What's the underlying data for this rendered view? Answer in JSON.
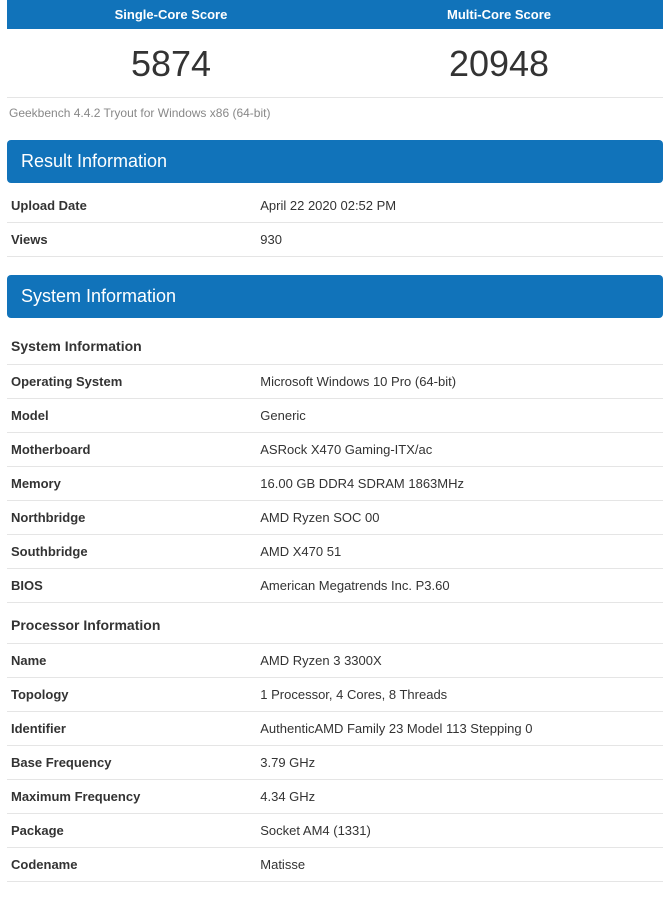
{
  "scores": {
    "single_label": "Single-Core Score",
    "single_value": "5874",
    "multi_label": "Multi-Core Score",
    "multi_value": "20948"
  },
  "footnote": "Geekbench 4.4.2 Tryout for Windows x86 (64-bit)",
  "result_info": {
    "title": "Result Information",
    "rows": [
      {
        "label": "Upload Date",
        "value": "April 22 2020 02:52 PM"
      },
      {
        "label": "Views",
        "value": "930"
      }
    ]
  },
  "system_info": {
    "title": "System Information",
    "subhead": "System Information",
    "rows": [
      {
        "label": "Operating System",
        "value": "Microsoft Windows 10 Pro (64-bit)"
      },
      {
        "label": "Model",
        "value": "Generic"
      },
      {
        "label": "Motherboard",
        "value": "ASRock X470 Gaming-ITX/ac"
      },
      {
        "label": "Memory",
        "value": "16.00 GB DDR4 SDRAM 1863MHz"
      },
      {
        "label": "Northbridge",
        "value": "AMD Ryzen SOC 00"
      },
      {
        "label": "Southbridge",
        "value": "AMD X470 51"
      },
      {
        "label": "BIOS",
        "value": "American Megatrends Inc. P3.60"
      }
    ]
  },
  "processor_info": {
    "subhead": "Processor Information",
    "rows": [
      {
        "label": "Name",
        "value": "AMD Ryzen 3 3300X"
      },
      {
        "label": "Topology",
        "value": "1 Processor, 4 Cores, 8 Threads"
      },
      {
        "label": "Identifier",
        "value": "AuthenticAMD Family 23 Model 113 Stepping 0"
      },
      {
        "label": "Base Frequency",
        "value": "3.79 GHz"
      },
      {
        "label": "Maximum Frequency",
        "value": "4.34 GHz"
      },
      {
        "label": "Package",
        "value": "Socket AM4 (1331)"
      },
      {
        "label": "Codename",
        "value": "Matisse"
      }
    ]
  },
  "colors": {
    "brand": "#1173ba",
    "text": "#333333",
    "muted": "#888888",
    "border": "#e5e5e5",
    "bg": "#ffffff"
  }
}
